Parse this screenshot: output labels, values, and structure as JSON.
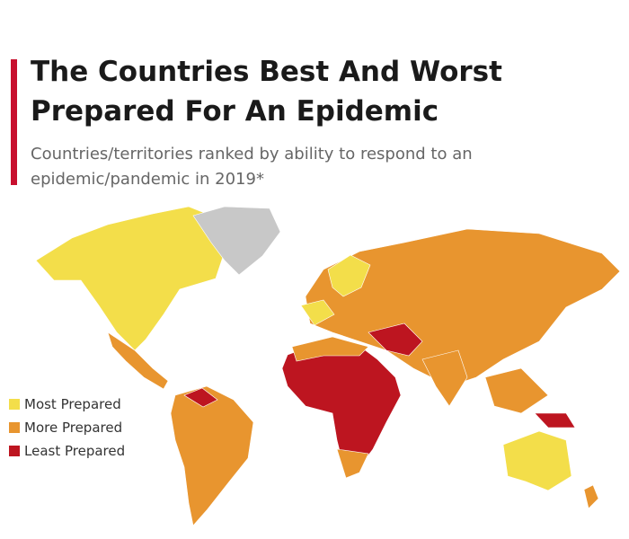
{
  "header": {
    "title": "The Countries Best And Worst Prepared For An Epidemic",
    "subtitle": "Countries/territories ranked by ability to respond to an epidemic/pandemic in 2019*"
  },
  "legend": [
    {
      "label": "Most Prepared",
      "color": "#f3de4a"
    },
    {
      "label": "More Prepared",
      "color": "#e8952f"
    },
    {
      "label": "Least Prepared",
      "color": "#bd1520"
    }
  ]
}
